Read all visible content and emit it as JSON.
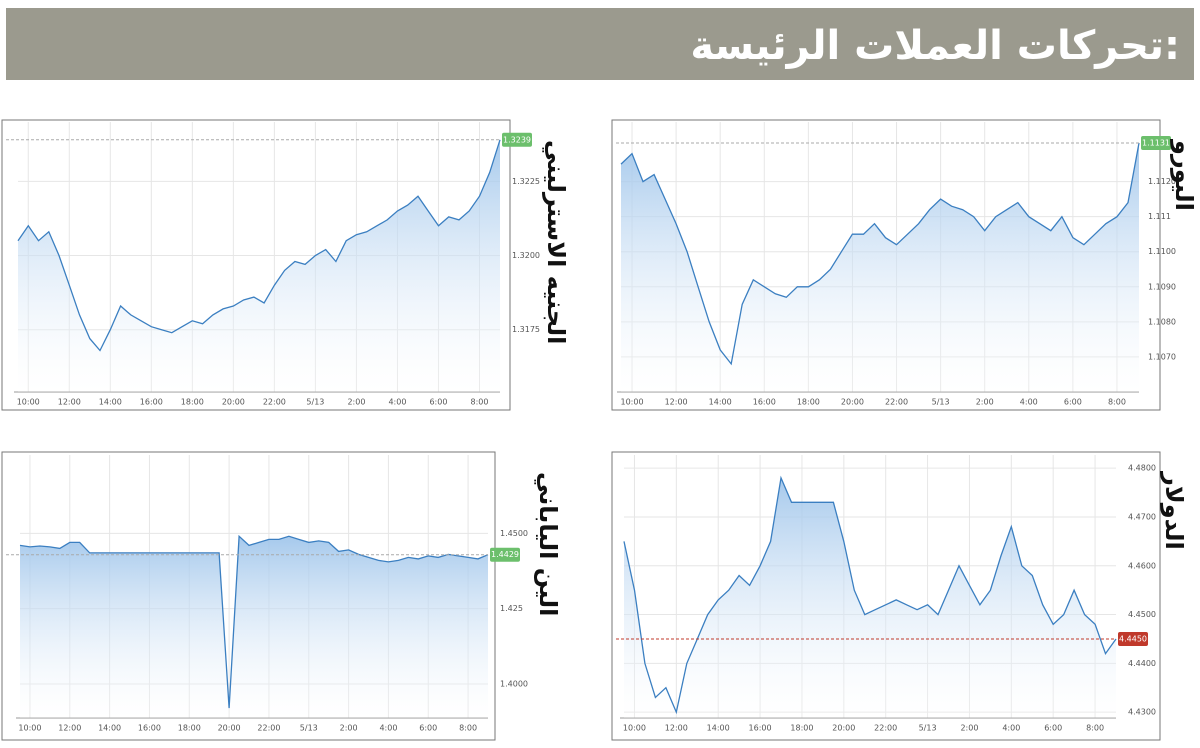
{
  "header": {
    "title": "تحركات العملات الرئيسة:"
  },
  "chart_data": [
    {
      "type": "line",
      "title": "اليورو",
      "color": "#3b7fc1",
      "grid": true,
      "categories": [
        null,
        "10:00",
        null,
        null,
        null,
        "12:00",
        null,
        null,
        null,
        "14:00",
        null,
        null,
        null,
        "16:00",
        null,
        null,
        null,
        "18:00",
        null,
        null,
        null,
        "20:00",
        null,
        null,
        null,
        "22:00",
        null,
        null,
        null,
        "5/13",
        null,
        null,
        null,
        "2:00",
        null,
        null,
        null,
        "4:00",
        null,
        null,
        null,
        "6:00",
        null,
        null,
        null,
        "8:00",
        null,
        null
      ],
      "values": [
        1.1125,
        1.1128,
        1.112,
        1.1122,
        1.1115,
        1.1108,
        1.11,
        1.109,
        1.108,
        1.1072,
        1.1068,
        1.1085,
        1.1092,
        1.109,
        1.1088,
        1.1087,
        1.109,
        1.109,
        1.1092,
        1.1095,
        1.11,
        1.1105,
        1.1105,
        1.1108,
        1.1104,
        1.1102,
        1.1105,
        1.1108,
        1.1112,
        1.1115,
        1.1113,
        1.1112,
        1.111,
        1.1106,
        1.111,
        1.1112,
        1.1114,
        1.111,
        1.1108,
        1.1106,
        1.111,
        1.1104,
        1.1102,
        1.1105,
        1.1108,
        1.111,
        1.1114,
        1.1131
      ],
      "ylim": [
        1.106,
        1.1137
      ],
      "yticks": [
        {
          "value": 1.107,
          "label": "1.1070"
        },
        {
          "value": 1.108,
          "label": "1.1080"
        },
        {
          "value": 1.109,
          "label": "1.1090"
        },
        {
          "value": 1.11,
          "label": "1.1100"
        },
        1.111,
        {
          "value": 1.112,
          "label": "1.1120"
        }
      ],
      "current_value": 1.1131,
      "current_color": "#6cbf6c"
    },
    {
      "type": "line",
      "title": "الجنيه الاسترليني",
      "color": "#3b7fc1",
      "grid": true,
      "categories": [
        null,
        "10:00",
        null,
        null,
        null,
        "12:00",
        null,
        null,
        null,
        "14:00",
        null,
        null,
        null,
        "16:00",
        null,
        null,
        null,
        "18:00",
        null,
        null,
        null,
        "20:00",
        null,
        null,
        null,
        "22:00",
        null,
        null,
        null,
        "5/13",
        null,
        null,
        null,
        "2:00",
        null,
        null,
        null,
        "4:00",
        null,
        null,
        null,
        "6:00",
        null,
        null,
        null,
        "8:00",
        null,
        null
      ],
      "values": [
        1.3205,
        1.321,
        1.3205,
        1.3208,
        1.32,
        1.319,
        1.318,
        1.3172,
        1.3168,
        1.3175,
        1.3183,
        1.318,
        1.3178,
        1.3176,
        1.3175,
        1.3174,
        1.3176,
        1.3178,
        1.3177,
        1.318,
        1.3182,
        1.3183,
        1.3185,
        1.3186,
        1.3184,
        1.319,
        1.3195,
        1.3198,
        1.3197,
        1.32,
        1.3202,
        1.3198,
        1.3205,
        1.3207,
        1.3208,
        1.321,
        1.3212,
        1.3215,
        1.3217,
        1.322,
        1.3215,
        1.321,
        1.3213,
        1.3212,
        1.3215,
        1.322,
        1.3228,
        1.3239
      ],
      "ylim": [
        1.3154,
        1.3245
      ],
      "yticks": [
        1.3175,
        {
          "value": 1.32,
          "label": "1.3200"
        },
        1.3225
      ],
      "current_value": 1.3239,
      "current_color": "#6cbf6c"
    },
    {
      "type": "line",
      "title": "الين الياباني",
      "color": "#3b7fc1",
      "grid": true,
      "categories": [
        null,
        "10:00",
        null,
        null,
        null,
        "12:00",
        null,
        null,
        null,
        "14:00",
        null,
        null,
        null,
        "16:00",
        null,
        null,
        null,
        "18:00",
        null,
        null,
        null,
        "20:00",
        null,
        null,
        null,
        "22:00",
        null,
        null,
        null,
        "5/13",
        null,
        null,
        null,
        "2:00",
        null,
        null,
        null,
        "4:00",
        null,
        null,
        null,
        "6:00",
        null,
        null,
        null,
        "8:00",
        null,
        null
      ],
      "values": [
        1.446,
        1.4455,
        1.4458,
        1.4455,
        1.445,
        1.447,
        1.447,
        1.4435,
        1.4435,
        1.4435,
        1.4435,
        1.4435,
        1.4435,
        1.4435,
        1.4435,
        1.4435,
        1.4435,
        1.4435,
        1.4435,
        1.4435,
        1.4435,
        1.392,
        1.449,
        1.446,
        1.447,
        1.448,
        1.448,
        1.449,
        1.448,
        1.447,
        1.4475,
        1.447,
        1.444,
        1.4445,
        1.443,
        1.442,
        1.441,
        1.4405,
        1.441,
        1.442,
        1.4415,
        1.4425,
        1.442,
        1.443,
        1.4425,
        1.442,
        1.4415,
        1.4429
      ],
      "ylim": [
        1.3887,
        1.476
      ],
      "yticks": [
        {
          "value": 1.4,
          "label": "1.4000"
        },
        1.425,
        {
          "value": 1.45,
          "label": "1.4500"
        }
      ],
      "current_value": 1.4429,
      "current_color": "#6cbf6c"
    },
    {
      "type": "line",
      "title": "الدولار",
      "color": "#3b7fc1",
      "grid": true,
      "categories": [
        null,
        "10:00",
        null,
        null,
        null,
        "12:00",
        null,
        null,
        null,
        "14:00",
        null,
        null,
        null,
        "16:00",
        null,
        null,
        null,
        "18:00",
        null,
        null,
        null,
        "20:00",
        null,
        null,
        null,
        "22:00",
        null,
        null,
        null,
        "5/13",
        null,
        null,
        null,
        "2:00",
        null,
        null,
        null,
        "4:00",
        null,
        null,
        null,
        "6:00",
        null,
        null,
        null,
        "8:00",
        null,
        null
      ],
      "values": [
        4.465,
        4.455,
        4.44,
        4.433,
        4.435,
        4.43,
        4.44,
        4.445,
        4.45,
        4.453,
        4.455,
        4.458,
        4.456,
        4.46,
        4.465,
        4.478,
        4.473,
        4.473,
        4.473,
        4.473,
        4.473,
        4.465,
        4.455,
        4.45,
        4.451,
        4.452,
        4.453,
        4.452,
        4.451,
        4.452,
        4.45,
        4.455,
        4.46,
        4.456,
        4.452,
        4.455,
        4.462,
        4.468,
        4.46,
        4.458,
        4.452,
        4.448,
        4.45,
        4.455,
        4.45,
        4.448,
        4.442,
        4.445
      ],
      "ylim": [
        4.4288,
        4.4827
      ],
      "yticks": [
        {
          "value": 4.43,
          "label": "4.4300"
        },
        {
          "value": 4.44,
          "label": "4.4400"
        },
        {
          "value": 4.45,
          "label": "4.4500"
        },
        {
          "value": 4.46,
          "label": "4.4600"
        },
        {
          "value": 4.47,
          "label": "4.4700"
        },
        {
          "value": 4.48,
          "label": "4.4800"
        }
      ],
      "current_value": {
        "value": 4.445,
        "label": "4.4450"
      },
      "current_color": "#c0392b"
    }
  ]
}
